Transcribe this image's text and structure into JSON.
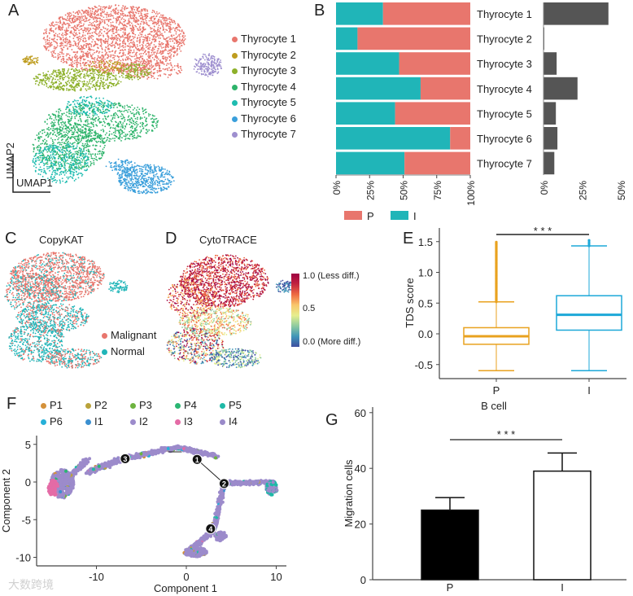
{
  "panels": {
    "A": "A",
    "B": "B",
    "C": "C",
    "D": "D",
    "E": "E",
    "F": "F",
    "G": "G"
  },
  "panelA": {
    "xlabel": "UMAP1",
    "ylabel": "UMAP2",
    "legend": [
      {
        "label": "Thyrocyte 1",
        "color": "#E8766D"
      },
      {
        "label": "Thyrocyte 2",
        "color": "#BE9C1E"
      },
      {
        "label": "Thyrocyte 3",
        "color": "#8DB02A"
      },
      {
        "label": "Thyrocyte 4",
        "color": "#2DB36A"
      },
      {
        "label": "Thyrocyte 5",
        "color": "#1EBCB0"
      },
      {
        "label": "Thyrocyte 6",
        "color": "#3A9FDB"
      },
      {
        "label": "Thyrocyte 7",
        "color": "#9E8FCF"
      }
    ]
  },
  "panelC": {
    "title": "CopyKAT",
    "legend": [
      {
        "label": "Malignant",
        "color": "#E8766D"
      },
      {
        "label": "Normal",
        "color": "#20B5B8"
      }
    ]
  },
  "panelD": {
    "title": "CytoTRACE",
    "colorbar": {
      "high": "1.0 (Less diff.)",
      "mid": "0.5",
      "low": "0.0 (More diff.)"
    }
  },
  "panelF": {
    "legend": [
      {
        "label": "P1",
        "color": "#D4913A"
      },
      {
        "label": "P2",
        "color": "#B9A23A"
      },
      {
        "label": "P3",
        "color": "#6DB33F"
      },
      {
        "label": "P4",
        "color": "#2BB673"
      },
      {
        "label": "P5",
        "color": "#1FB9A7"
      },
      {
        "label": "P6",
        "color": "#26B0D8"
      },
      {
        "label": "I1",
        "color": "#3B8FD0"
      },
      {
        "label": "I2",
        "color": "#9C8BCB"
      },
      {
        "label": "I3",
        "color": "#E46BA6"
      },
      {
        "label": "I4",
        "color": "#9A8AC9"
      }
    ],
    "branch_points": [
      "1",
      "2",
      "3",
      "4"
    ]
  },
  "watermark": "大数跨境",
  "chart_data": [
    {
      "panel": "B-left",
      "type": "bar",
      "stacked": true,
      "orientation": "horizontal",
      "categories": [
        "Thyrocyte 1",
        "Thyrocyte 2",
        "Thyrocyte 3",
        "Thyrocyte 4",
        "Thyrocyte 5",
        "Thyrocyte 6",
        "Thyrocyte 7"
      ],
      "series": [
        {
          "name": "I",
          "color": "#20B5B8",
          "values": [
            35,
            16,
            47,
            63,
            44,
            85,
            51
          ]
        },
        {
          "name": "P",
          "color": "#E8766D",
          "values": [
            65,
            84,
            53,
            37,
            56,
            15,
            49
          ]
        }
      ],
      "xticks": [
        "0%",
        "25%",
        "50%",
        "75%",
        "100%"
      ],
      "xlim": [
        0,
        100
      ],
      "legend": [
        {
          "label": "P",
          "color": "#E8766D"
        },
        {
          "label": "I",
          "color": "#20B5B8"
        }
      ]
    },
    {
      "panel": "B-right",
      "type": "bar",
      "orientation": "horizontal",
      "categories": [
        "Thyrocyte 1",
        "Thyrocyte 2",
        "Thyrocyte 3",
        "Thyrocyte 4",
        "Thyrocyte 5",
        "Thyrocyte 6",
        "Thyrocyte 7"
      ],
      "values": [
        42,
        0.5,
        8.5,
        22,
        8,
        9,
        7
      ],
      "color": "#555555",
      "xticks": [
        "0%",
        "25%",
        "50%"
      ],
      "xlim": [
        0,
        50
      ]
    },
    {
      "panel": "E",
      "type": "box",
      "ylabel": "TDS score",
      "ylim": [
        -0.65,
        1.75
      ],
      "yticks": [
        "1.5",
        "1.0",
        "0.5",
        "0.0",
        "-0.5"
      ],
      "ytick_values": [
        1.5,
        1.0,
        0.5,
        0.0,
        -0.5
      ],
      "categories": [
        "P",
        "I"
      ],
      "boxes": [
        {
          "name": "P",
          "color": "#E9A21F",
          "min": -0.6,
          "q1": -0.17,
          "median": -0.04,
          "q3": 0.1,
          "max": 0.52,
          "outliers_to": 1.5
        },
        {
          "name": "I",
          "color": "#1DA8D8",
          "min": -0.6,
          "q1": 0.06,
          "median": 0.31,
          "q3": 0.62,
          "max": 1.43,
          "outliers_to": 1.54
        }
      ],
      "significance": "* * *"
    },
    {
      "panel": "F",
      "type": "scatter",
      "xlabel": "Component 1",
      "ylabel": "Component 2",
      "xlim": [
        -16,
        11
      ],
      "ylim": [
        -11,
        6
      ],
      "xticks": [
        "-10",
        "0",
        "10"
      ],
      "xtick_values": [
        -10,
        0,
        10
      ],
      "yticks": [
        "5",
        "0",
        "-5",
        "-10"
      ],
      "ytick_values": [
        5,
        0,
        -5,
        -10
      ],
      "branch_points": [
        {
          "id": "1",
          "x": 1.2,
          "y": 3.0
        },
        {
          "id": "2",
          "x": 4.2,
          "y": -0.2
        },
        {
          "id": "3",
          "x": -6.8,
          "y": 3.1
        },
        {
          "id": "4",
          "x": 2.7,
          "y": -6.2
        }
      ]
    },
    {
      "panel": "G",
      "type": "bar",
      "title": "B cell",
      "ylabel": "Migration cells",
      "ylim": [
        0,
        60
      ],
      "yticks": [
        "60",
        "40",
        "20",
        "0"
      ],
      "ytick_values": [
        60,
        40,
        20,
        0
      ],
      "categories": [
        "P",
        "I"
      ],
      "values": [
        25,
        39
      ],
      "errors": [
        4.5,
        6.5
      ],
      "colors": [
        "#000000",
        "#ffffff"
      ],
      "significance": "* * *"
    }
  ]
}
